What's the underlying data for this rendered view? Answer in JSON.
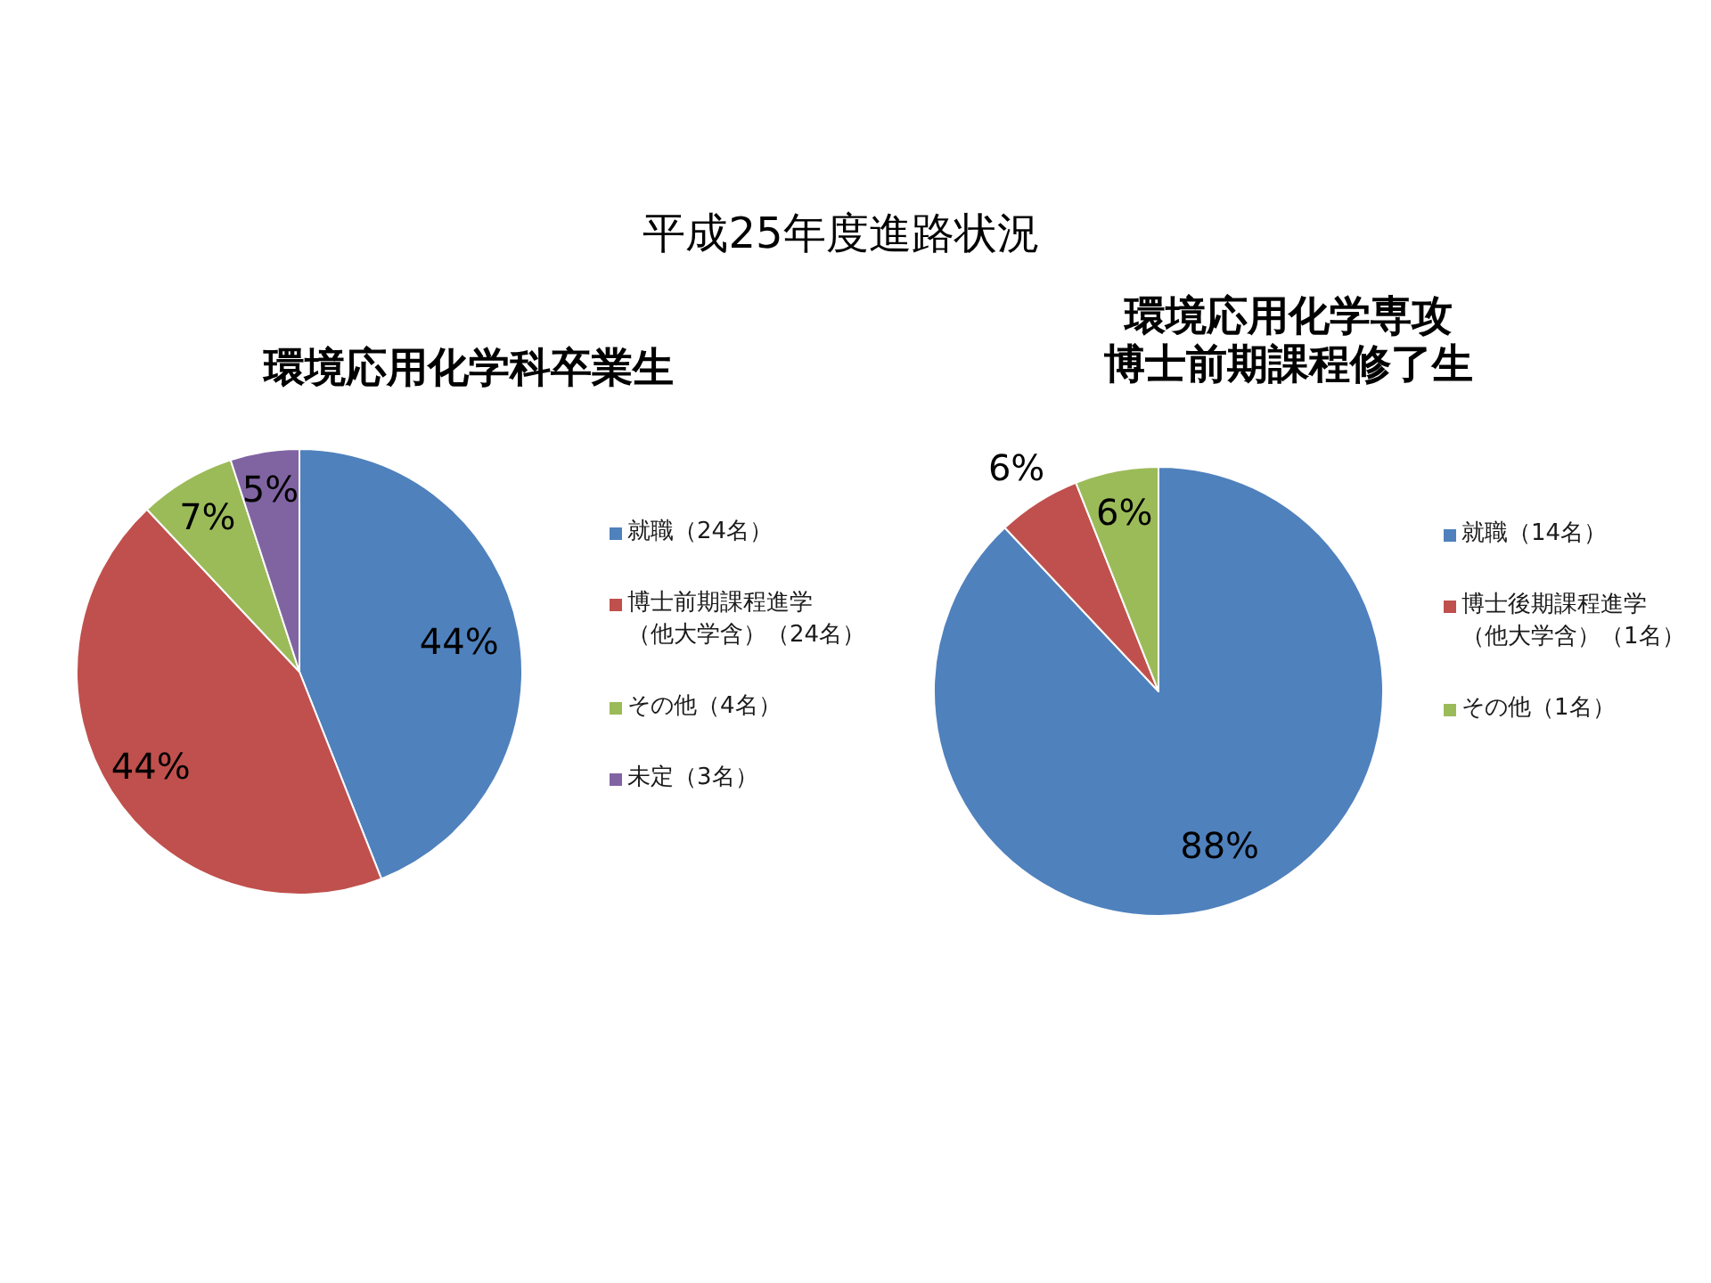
{
  "chart_data": [
    {
      "type": "pie",
      "title": "環境応用化学科卒業生",
      "annotations": [
        "平成25年度進路状況"
      ],
      "categories": [
        "就職（24名）",
        "博士前期課程進学（他大学含）（24名）",
        "その他（4名）",
        "未定（3名）"
      ],
      "values": [
        44,
        44,
        7,
        5
      ],
      "colors": [
        "#4f81bd",
        "#c0504d",
        "#9bbb59",
        "#8064a2"
      ],
      "value_labels": [
        "44%",
        "44%",
        "7%",
        "5%"
      ],
      "legend": "right"
    },
    {
      "type": "pie",
      "title": "環境応用化学専攻博士前期課程修了生",
      "categories": [
        "就職（14名）",
        "博士後期課程進学（他大学含）（1名）",
        "その他（1名）"
      ],
      "values": [
        88,
        6,
        6
      ],
      "colors": [
        "#4f81bd",
        "#c0504d",
        "#9bbb59"
      ],
      "value_labels": [
        "88%",
        "6%",
        "6%"
      ],
      "legend": "right"
    }
  ]
}
